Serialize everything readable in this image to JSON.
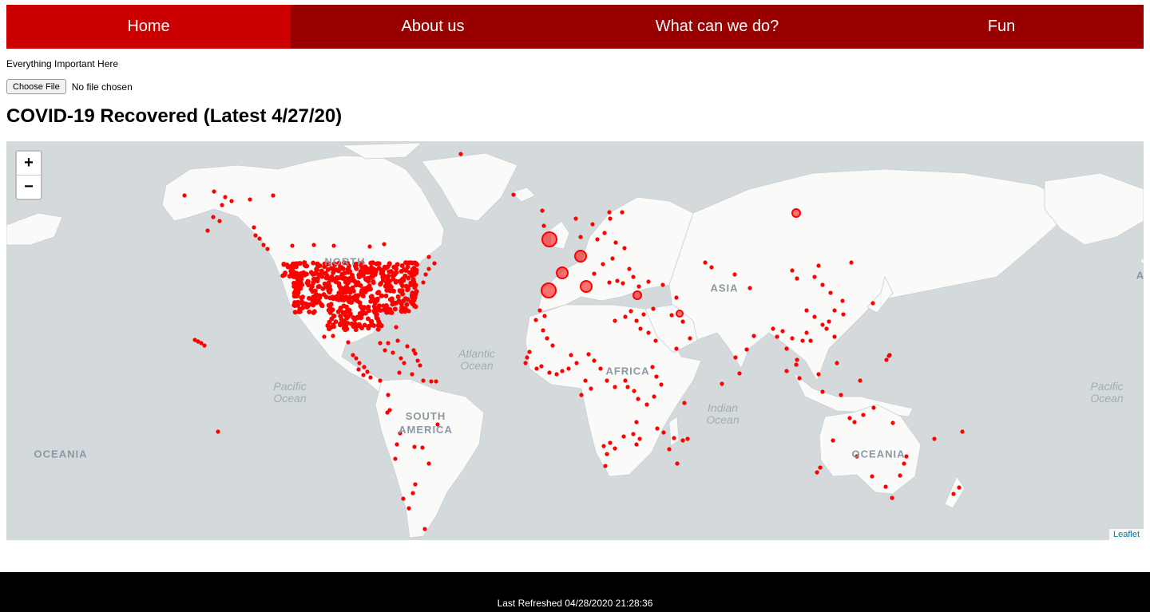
{
  "nav": {
    "items": [
      {
        "label": "Home",
        "active": true
      },
      {
        "label": "About us",
        "active": false
      },
      {
        "label": "What can we do?",
        "active": false
      },
      {
        "label": "Fun",
        "active": false
      }
    ]
  },
  "tagline": "Everything Important Here",
  "file_input": {
    "button_label": "Choose File",
    "status": "No file chosen"
  },
  "page_title": "COVID-19 Recovered (Latest 4/27/20)",
  "map": {
    "zoom_in": "+",
    "zoom_out": "−",
    "attribution": "Leaflet",
    "marker_color": "#ff0000",
    "labels": {
      "north_america": "NORTH",
      "south_america": "SOUTH\nAMERICA",
      "africa": "AFRICA",
      "asia": "ASIA",
      "oceania_left": "OCEANIA",
      "oceania_right": "OCEANIA",
      "atlantic": "Atlantic\nOcean",
      "pacific_left": "Pacific\nOcean",
      "pacific_right": "Pacific\nOcean",
      "indian": "Indian\nOcean",
      "edge_right": "A"
    }
  },
  "footer": {
    "refreshed": "Last Refreshed 04/28/2020 21:28:36"
  }
}
